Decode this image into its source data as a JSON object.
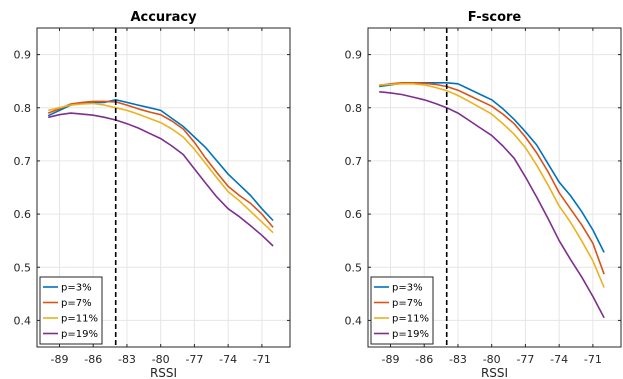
{
  "chart_data": [
    {
      "type": "line",
      "title": "Accuracy",
      "xlabel": "RSSI",
      "ylabel": "",
      "xlim": [
        -91,
        -68.5
      ],
      "ylim": [
        0.35,
        0.95
      ],
      "xticks": [
        -89,
        -86,
        -83,
        -80,
        -77,
        -74,
        -71
      ],
      "yticks": [
        0.4,
        0.5,
        0.6,
        0.7,
        0.8,
        0.9
      ],
      "ytick_labels": [
        "0.4",
        "0.5",
        "0.6",
        "0.7",
        "0.8",
        "0.9"
      ],
      "vline_x": -84,
      "legend_position": "bottom-left",
      "x": [
        -90,
        -89,
        -88,
        -87,
        -86,
        -85,
        -84,
        -83,
        -82,
        -81,
        -80,
        -79,
        -78,
        -77,
        -76,
        -75,
        -74,
        -73,
        -72,
        -71,
        -70
      ],
      "series": [
        {
          "name": "p=3%",
          "color": "#0072BD",
          "values": [
            0.785,
            0.795,
            0.805,
            0.808,
            0.81,
            0.81,
            0.815,
            0.81,
            0.805,
            0.8,
            0.795,
            0.78,
            0.765,
            0.745,
            0.725,
            0.7,
            0.675,
            0.655,
            0.635,
            0.61,
            0.588
          ]
        },
        {
          "name": "p=7%",
          "color": "#D95319",
          "values": [
            0.79,
            0.798,
            0.807,
            0.81,
            0.812,
            0.812,
            0.811,
            0.805,
            0.798,
            0.792,
            0.787,
            0.775,
            0.76,
            0.735,
            0.705,
            0.678,
            0.652,
            0.635,
            0.62,
            0.6,
            0.575
          ]
        },
        {
          "name": "p=11%",
          "color": "#EDB120",
          "values": [
            0.795,
            0.8,
            0.805,
            0.807,
            0.808,
            0.805,
            0.8,
            0.795,
            0.788,
            0.78,
            0.772,
            0.76,
            0.745,
            0.722,
            0.695,
            0.668,
            0.642,
            0.625,
            0.605,
            0.585,
            0.565
          ]
        },
        {
          "name": "p=19%",
          "color": "#7E2F8E",
          "values": [
            0.782,
            0.787,
            0.79,
            0.788,
            0.786,
            0.782,
            0.777,
            0.77,
            0.762,
            0.752,
            0.742,
            0.728,
            0.712,
            0.685,
            0.658,
            0.632,
            0.61,
            0.595,
            0.578,
            0.56,
            0.54
          ]
        }
      ]
    },
    {
      "type": "line",
      "title": "F-score",
      "xlabel": "RSSI",
      "ylabel": "",
      "xlim": [
        -91,
        -68.5
      ],
      "ylim": [
        0.35,
        0.95
      ],
      "xticks": [
        -89,
        -86,
        -83,
        -80,
        -77,
        -74,
        -71
      ],
      "yticks": [
        0.4,
        0.5,
        0.6,
        0.7,
        0.8,
        0.9
      ],
      "ytick_labels": [
        "0.4",
        "0.5",
        "0.6",
        "0.7",
        "0.8",
        "0.9"
      ],
      "vline_x": -84,
      "legend_position": "bottom-left",
      "x": [
        -90,
        -89,
        -88,
        -87,
        -86,
        -85,
        -84,
        -83,
        -82,
        -81,
        -80,
        -79,
        -78,
        -77,
        -76,
        -75,
        -74,
        -73,
        -72,
        -71,
        -70
      ],
      "series": [
        {
          "name": "p=3%",
          "color": "#0072BD",
          "values": [
            0.84,
            0.843,
            0.846,
            0.847,
            0.847,
            0.847,
            0.847,
            0.845,
            0.835,
            0.825,
            0.815,
            0.798,
            0.778,
            0.755,
            0.73,
            0.695,
            0.66,
            0.635,
            0.605,
            0.57,
            0.528
          ]
        },
        {
          "name": "p=7%",
          "color": "#D95319",
          "values": [
            0.842,
            0.845,
            0.847,
            0.847,
            0.846,
            0.844,
            0.84,
            0.833,
            0.823,
            0.813,
            0.803,
            0.788,
            0.77,
            0.745,
            0.715,
            0.68,
            0.64,
            0.61,
            0.58,
            0.545,
            0.487
          ]
        },
        {
          "name": "p=11%",
          "color": "#EDB120",
          "values": [
            0.843,
            0.844,
            0.845,
            0.845,
            0.843,
            0.838,
            0.832,
            0.823,
            0.812,
            0.8,
            0.788,
            0.77,
            0.75,
            0.725,
            0.692,
            0.655,
            0.615,
            0.585,
            0.55,
            0.512,
            0.462
          ]
        },
        {
          "name": "p=19%",
          "color": "#7E2F8E",
          "values": [
            0.83,
            0.828,
            0.825,
            0.82,
            0.815,
            0.808,
            0.8,
            0.79,
            0.776,
            0.762,
            0.748,
            0.728,
            0.705,
            0.67,
            0.632,
            0.592,
            0.55,
            0.515,
            0.482,
            0.445,
            0.405
          ]
        }
      ]
    }
  ]
}
